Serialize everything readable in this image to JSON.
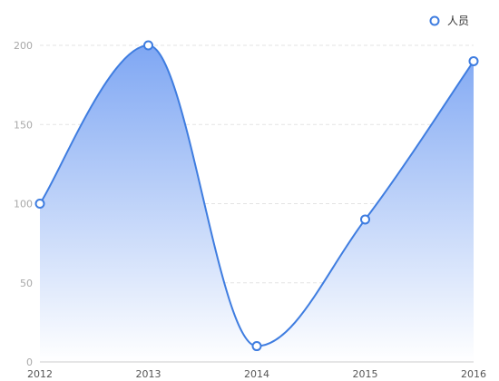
{
  "chart_data": {
    "type": "area",
    "categories": [
      "2012",
      "2013",
      "2014",
      "2015",
      "2016"
    ],
    "series": [
      {
        "name": "人员",
        "values": [
          100,
          200,
          10,
          90,
          190
        ]
      }
    ],
    "ylim": [
      0,
      200
    ],
    "yticks": [
      "0",
      "50",
      "100",
      "150",
      "200"
    ],
    "grid": true,
    "legend_position": "top-right",
    "colors": {
      "line": "#3f7de0",
      "area_top": "#7fa7f3",
      "area_bottom": "#ffffff",
      "marker_fill": "#ffffff"
    }
  }
}
